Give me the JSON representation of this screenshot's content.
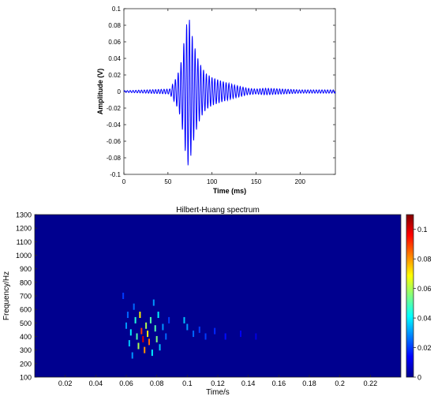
{
  "chart_data": [
    {
      "type": "line",
      "title": "",
      "xlabel": "Time (ms)",
      "ylabel": "Amplitude (V)",
      "xlim": [
        0,
        240
      ],
      "ylim": [
        -0.1,
        0.1
      ],
      "xticks": [
        0,
        50,
        100,
        150,
        200
      ],
      "xtick_labels": [
        "0",
        "50",
        "100",
        "150",
        "200"
      ],
      "yticks": [
        0.1,
        0.08,
        0.06,
        0.04,
        0.02,
        0,
        -0.02,
        -0.04,
        -0.06,
        -0.08,
        -0.1
      ],
      "ytick_labels": [
        "0.1",
        "0.08",
        "0.06",
        "0.04",
        "0.02",
        "0",
        "-0.02",
        "-0.04",
        "-0.06",
        "-0.08",
        "-0.1"
      ],
      "grid": false,
      "color": "#0000ff",
      "series": [
        {
          "name": "",
          "x": [
            0,
            52,
            56,
            60,
            64,
            67,
            70,
            72,
            73,
            75,
            77,
            80,
            84,
            88,
            93,
            100,
            110,
            125,
            140,
            150,
            160,
            180,
            200,
            240
          ],
          "y_envelope": [
            0.001,
            0.003,
            0.01,
            0.018,
            0.03,
            0.05,
            0.075,
            0.085,
            0.09,
            0.085,
            0.07,
            0.055,
            0.04,
            0.03,
            0.022,
            0.017,
            0.013,
            0.008,
            0.004,
            0.003,
            0.004,
            0.003,
            0.002,
            0.002
          ]
        }
      ]
    },
    {
      "type": "heatmap",
      "title": "Hilbert-Huang spectrum",
      "xlabel": "Time/s",
      "ylabel": "Frequency/Hz",
      "xlim": [
        0,
        0.24
      ],
      "ylim": [
        100,
        1300
      ],
      "xticks": [
        0.02,
        0.04,
        0.06,
        0.08,
        0.1,
        0.12,
        0.14,
        0.16,
        0.18,
        0.2,
        0.22
      ],
      "xtick_labels": [
        "0.02",
        "0.04",
        "0.06",
        "0.08",
        "0.1",
        "0.12",
        "0.14",
        "0.16",
        "0.18",
        "0.2",
        "0.22"
      ],
      "yticks": [
        1300,
        1200,
        1100,
        1000,
        900,
        800,
        700,
        600,
        500,
        400,
        300,
        200,
        100
      ],
      "ytick_labels": [
        "1300",
        "1200",
        "1100",
        "1000",
        "900",
        "800",
        "700",
        "600",
        "500",
        "400",
        "300",
        "200",
        "100"
      ],
      "colorbar": {
        "range": [
          0,
          0.11
        ],
        "ticks": [
          0.1,
          0.08,
          0.06,
          0.04,
          0.02,
          0
        ],
        "tick_labels": [
          "0.1",
          "0.08",
          "0.06",
          "0.04",
          "0.02",
          "0"
        ]
      },
      "background": "#00008f",
      "points": [
        {
          "t": 0.058,
          "f": 700,
          "v": 0.02
        },
        {
          "t": 0.06,
          "f": 480,
          "v": 0.03
        },
        {
          "t": 0.061,
          "f": 560,
          "v": 0.025
        },
        {
          "t": 0.062,
          "f": 350,
          "v": 0.035
        },
        {
          "t": 0.063,
          "f": 430,
          "v": 0.04
        },
        {
          "t": 0.064,
          "f": 260,
          "v": 0.03
        },
        {
          "t": 0.065,
          "f": 620,
          "v": 0.025
        },
        {
          "t": 0.066,
          "f": 520,
          "v": 0.045
        },
        {
          "t": 0.067,
          "f": 400,
          "v": 0.05
        },
        {
          "t": 0.068,
          "f": 330,
          "v": 0.06
        },
        {
          "t": 0.069,
          "f": 560,
          "v": 0.07
        },
        {
          "t": 0.07,
          "f": 440,
          "v": 0.09
        },
        {
          "t": 0.071,
          "f": 380,
          "v": 0.1
        },
        {
          "t": 0.072,
          "f": 300,
          "v": 0.08
        },
        {
          "t": 0.073,
          "f": 480,
          "v": 0.06
        },
        {
          "t": 0.074,
          "f": 420,
          "v": 0.07
        },
        {
          "t": 0.075,
          "f": 360,
          "v": 0.085
        },
        {
          "t": 0.076,
          "f": 520,
          "v": 0.05
        },
        {
          "t": 0.077,
          "f": 280,
          "v": 0.04
        },
        {
          "t": 0.078,
          "f": 650,
          "v": 0.03
        },
        {
          "t": 0.079,
          "f": 460,
          "v": 0.05
        },
        {
          "t": 0.08,
          "f": 380,
          "v": 0.055
        },
        {
          "t": 0.081,
          "f": 560,
          "v": 0.04
        },
        {
          "t": 0.082,
          "f": 320,
          "v": 0.035
        },
        {
          "t": 0.084,
          "f": 470,
          "v": 0.03
        },
        {
          "t": 0.086,
          "f": 400,
          "v": 0.025
        },
        {
          "t": 0.088,
          "f": 520,
          "v": 0.02
        },
        {
          "t": 0.098,
          "f": 520,
          "v": 0.035
        },
        {
          "t": 0.1,
          "f": 470,
          "v": 0.03
        },
        {
          "t": 0.104,
          "f": 420,
          "v": 0.025
        },
        {
          "t": 0.108,
          "f": 450,
          "v": 0.02
        },
        {
          "t": 0.112,
          "f": 400,
          "v": 0.02
        },
        {
          "t": 0.118,
          "f": 440,
          "v": 0.018
        },
        {
          "t": 0.125,
          "f": 400,
          "v": 0.015
        },
        {
          "t": 0.135,
          "f": 420,
          "v": 0.012
        },
        {
          "t": 0.145,
          "f": 400,
          "v": 0.01
        }
      ]
    }
  ]
}
